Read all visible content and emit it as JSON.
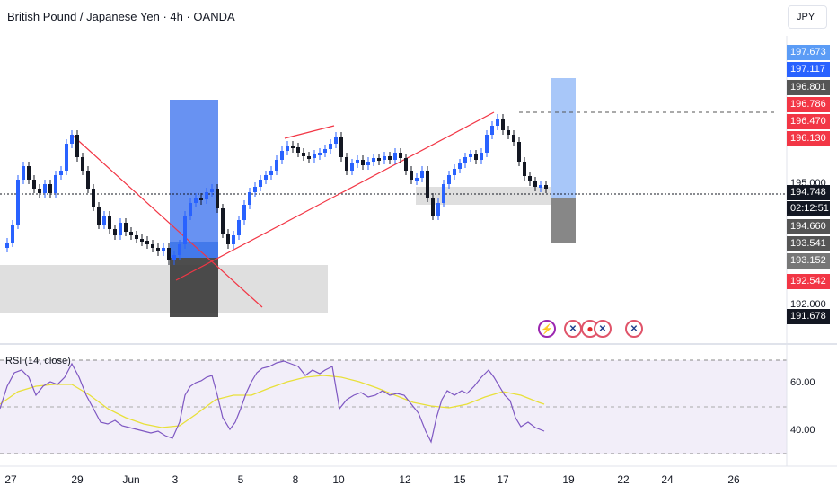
{
  "header": {
    "title": "British Pound / Japanese Yen · 4h · OANDA",
    "currency_button": "JPY"
  },
  "price_axis": {
    "ticks": [
      "195.000",
      "192.000"
    ],
    "labels": [
      {
        "text": "197.673",
        "value": 197.673,
        "color": "#5b9cf6"
      },
      {
        "text": "197.117",
        "value": 197.117,
        "color": "#2962ff"
      },
      {
        "text": "196.801",
        "value": 196.801,
        "color": "#555555"
      },
      {
        "text": "196.786",
        "value": 196.786,
        "color": "#f23645"
      },
      {
        "text": "196.470",
        "value": 196.47,
        "color": "#f23645"
      },
      {
        "text": "196.130",
        "value": 196.13,
        "color": "#f23645"
      },
      {
        "text": "194.748",
        "value": 194.748,
        "color": "#131722"
      },
      {
        "text": "02:12:51",
        "value": 194.748,
        "color": "#131722"
      },
      {
        "text": "194.660",
        "value": 194.66,
        "color": "#555555"
      },
      {
        "text": "193.541",
        "value": 193.541,
        "color": "#555555"
      },
      {
        "text": "193.152",
        "value": 193.152,
        "color": "#777777"
      },
      {
        "text": "192.542",
        "value": 192.542,
        "color": "#f23645"
      },
      {
        "text": "191.678",
        "value": 191.678,
        "color": "#131722"
      }
    ]
  },
  "time_axis": {
    "labels": [
      "27",
      "29",
      "Jun",
      "3",
      "5",
      "8",
      "10",
      "12",
      "15",
      "17",
      "19",
      "22",
      "24",
      "26"
    ]
  },
  "rsi": {
    "title": "RSI (14, close)",
    "levels": [
      "60.00",
      "40.00"
    ]
  },
  "events": [
    {
      "icon": "lightning-icon"
    },
    {
      "icon": "uk-flag-icon"
    },
    {
      "icon": "japan-flag-icon"
    },
    {
      "icon": "uk-flag-icon"
    },
    {
      "icon": "uk-flag-icon"
    }
  ],
  "colors": {
    "up": "#2962ff",
    "down": "#131722",
    "trendline": "#f23645",
    "rsi_line": "#7e57c2",
    "rsi_ma": "#e8e03a",
    "rsi_band": "#ede7f6"
  }
}
